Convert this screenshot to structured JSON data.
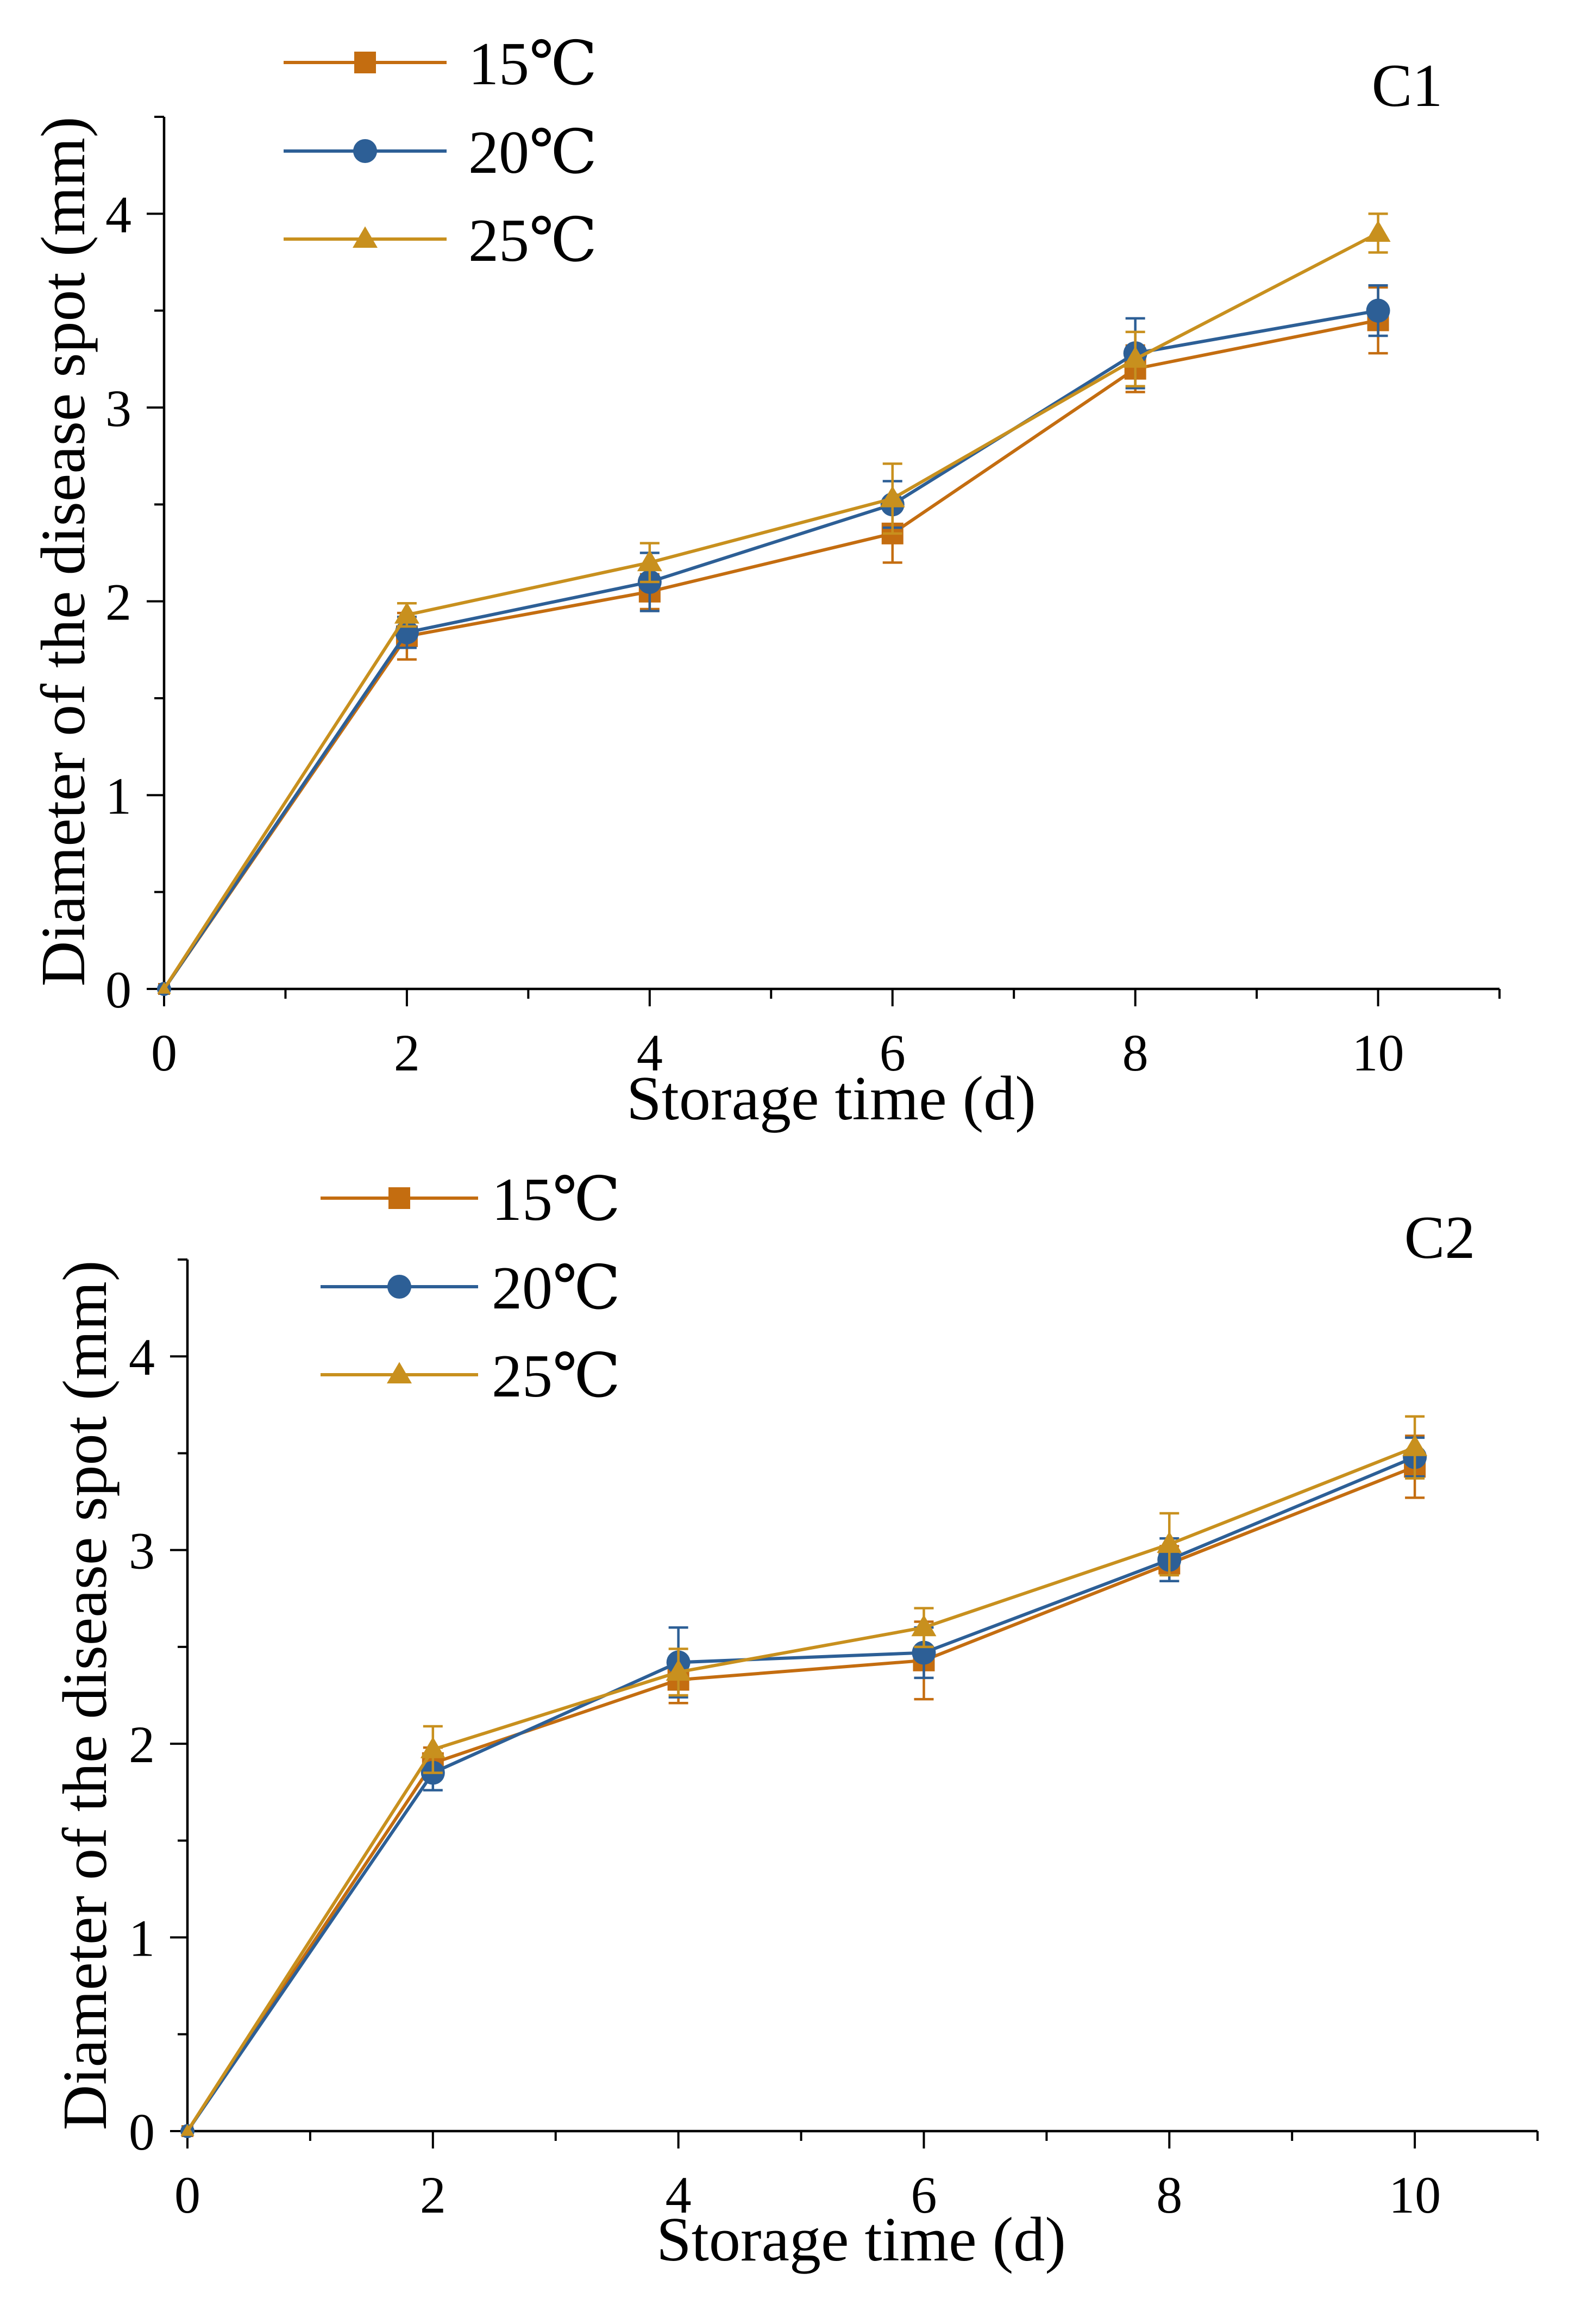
{
  "figure": "Diameter of disease spot vs storage time at three temperatures",
  "chart_data": [
    {
      "type": "line",
      "panel_label": "C1",
      "title": "",
      "xlabel": "Storage time (d)",
      "ylabel": "Diameter of the disease spot (mm)",
      "xlim": [
        0,
        11
      ],
      "ylim": [
        0,
        4.5
      ],
      "x_ticks": [
        0,
        2,
        4,
        6,
        8,
        10
      ],
      "y_ticks": [
        0,
        1,
        2,
        3,
        4
      ],
      "legend_position": "top-left",
      "x": [
        0,
        2,
        4,
        6,
        8,
        10
      ],
      "series": [
        {
          "name": "15℃",
          "marker": "square",
          "color": "#C46D10",
          "values": [
            0,
            1.82,
            2.05,
            2.35,
            3.2,
            3.45
          ],
          "errors": [
            0,
            0.12,
            0.09,
            0.15,
            0.12,
            0.17
          ]
        },
        {
          "name": "20℃",
          "marker": "circle",
          "color": "#2D5F96",
          "values": [
            0,
            1.84,
            2.1,
            2.5,
            3.28,
            3.5
          ],
          "errors": [
            0,
            0.08,
            0.15,
            0.12,
            0.18,
            0.13
          ]
        },
        {
          "name": "25℃",
          "marker": "triangle",
          "color": "#C8901E",
          "values": [
            0,
            1.93,
            2.2,
            2.53,
            3.25,
            3.9
          ],
          "errors": [
            0,
            0.06,
            0.1,
            0.18,
            0.14,
            0.1
          ]
        }
      ]
    },
    {
      "type": "line",
      "panel_label": "C2",
      "title": "",
      "xlabel": "Storage time (d)",
      "ylabel": "Diameter of the disease spot (mm)",
      "xlim": [
        0,
        11
      ],
      "ylim": [
        0,
        4.5
      ],
      "x_ticks": [
        0,
        2,
        4,
        6,
        8,
        10
      ],
      "y_ticks": [
        0,
        1,
        2,
        3,
        4
      ],
      "legend_position": "top-left",
      "x": [
        0,
        2,
        4,
        6,
        8,
        10
      ],
      "series": [
        {
          "name": "15℃",
          "marker": "square",
          "color": "#C46D10",
          "values": [
            0,
            1.9,
            2.33,
            2.43,
            2.93,
            3.43
          ],
          "errors": [
            0,
            0.08,
            0.12,
            0.2,
            0.09,
            0.16
          ]
        },
        {
          "name": "20℃",
          "marker": "circle",
          "color": "#2D5F96",
          "values": [
            0,
            1.85,
            2.42,
            2.47,
            2.95,
            3.48
          ],
          "errors": [
            0,
            0.09,
            0.18,
            0.13,
            0.11,
            0.1
          ]
        },
        {
          "name": "25℃",
          "marker": "triangle",
          "color": "#C8901E",
          "values": [
            0,
            1.97,
            2.37,
            2.6,
            3.03,
            3.53
          ],
          "errors": [
            0,
            0.12,
            0.12,
            0.1,
            0.16,
            0.16
          ]
        }
      ]
    }
  ]
}
